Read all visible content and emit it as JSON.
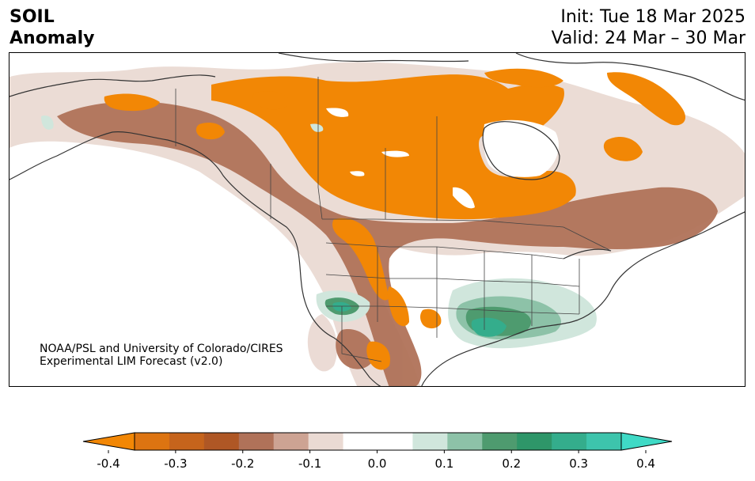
{
  "header": {
    "title_line1": "SOIL",
    "title_line2": "Anomaly",
    "init": "Init: Tue 18 Mar 2025",
    "valid": "Valid: 24 Mar – 30 Mar"
  },
  "map": {
    "credit_line1": "NOAA/PSL and University of Colorado/CIRES",
    "credit_line2": "Experimental LIM Forecast (v2.0)"
  },
  "colorbar": {
    "colors": [
      "#f28705",
      "#dd7411",
      "#c6641c",
      "#af5725",
      "#b07259",
      "#cda393",
      "#eadad3",
      "#ffffff",
      "#ffffff",
      "#d0e6dc",
      "#8dc2a8",
      "#4e9b6f",
      "#2e9669",
      "#34ad8c",
      "#3dc4ac",
      "#3fdac6"
    ],
    "ticks": [
      "-0.4",
      "-0.3",
      "-0.2",
      "-0.1",
      "0.0",
      "0.1",
      "0.2",
      "0.3",
      "0.4"
    ],
    "extend": "both"
  },
  "anomaly_legend": {
    "strong_dry": "#f28705",
    "dry": "#c6641c",
    "moderate_dry": "#b07259",
    "light_dry": "#eadad3",
    "light_wet": "#d0e6dc",
    "wet": "#4e9b6f",
    "strong_wet": "#34ad8c"
  }
}
